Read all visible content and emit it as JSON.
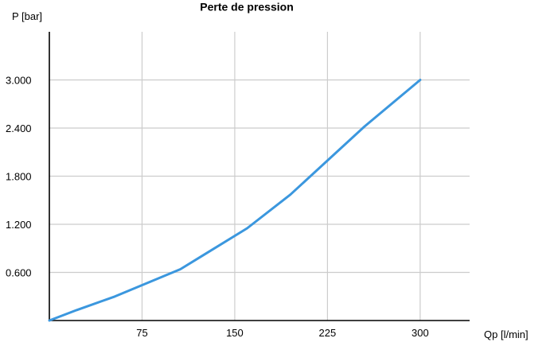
{
  "chart_data": {
    "type": "line",
    "title": "Perte de pression",
    "xlabel": "Qp [l/min]",
    "ylabel": "P [bar]",
    "xlim": [
      0,
      340
    ],
    "ylim": [
      0,
      3.6
    ],
    "x_ticks": [
      75,
      150,
      225,
      300
    ],
    "x_tick_labels": [
      "75",
      "150",
      "225",
      "300"
    ],
    "y_ticks": [
      0.6,
      1.2,
      1.8,
      2.4,
      3.0
    ],
    "y_tick_labels": [
      "0.600",
      "1.200",
      "1.800",
      "2.400",
      "3.000"
    ],
    "grid": true,
    "legend": "none",
    "series": [
      {
        "color": "#3b97de",
        "x": [
          0,
          22,
          53,
          106,
          160,
          195,
          255,
          300
        ],
        "y": [
          0,
          0.13,
          0.3,
          0.64,
          1.15,
          1.57,
          2.42,
          3.0
        ]
      }
    ]
  },
  "colors": {
    "grid": "#cccccc",
    "axis": "#000000",
    "line": "#3b97de"
  }
}
